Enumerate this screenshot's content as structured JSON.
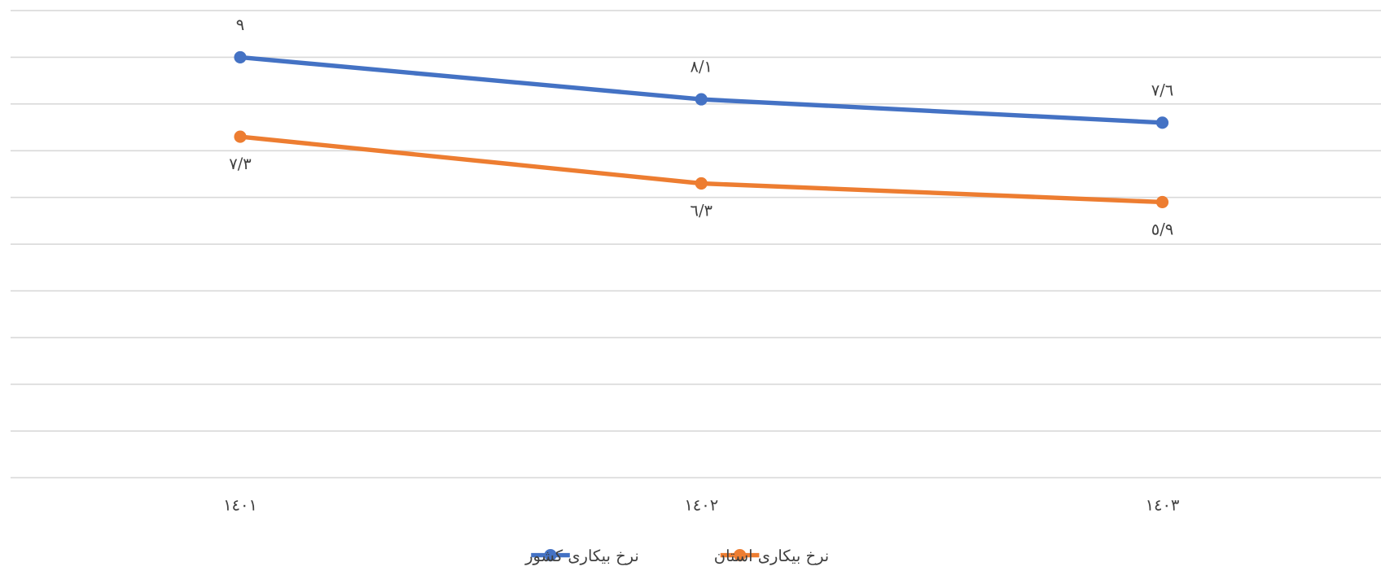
{
  "chart_data": {
    "type": "line",
    "categories": [
      "١٤٠١",
      "١٤٠٢",
      "١٤٠٣"
    ],
    "series": [
      {
        "name": "نرخ بیکاری کشور",
        "color": "#4472c4",
        "values": [
          9,
          8.1,
          7.6
        ],
        "value_labels": [
          "٩",
          "٨/١",
          "٧/٦"
        ]
      },
      {
        "name": "نرخ بیکاری استان",
        "color": "#ed7d31",
        "values": [
          7.3,
          6.3,
          5.9
        ],
        "value_labels": [
          "٧/٣",
          "٦/٣",
          "٥/٩"
        ]
      }
    ],
    "ylim": [
      0,
      10
    ],
    "yticks": [
      0,
      1,
      2,
      3,
      4,
      5,
      6,
      7,
      8,
      9,
      10
    ],
    "grid": true,
    "legend": "bottom"
  }
}
